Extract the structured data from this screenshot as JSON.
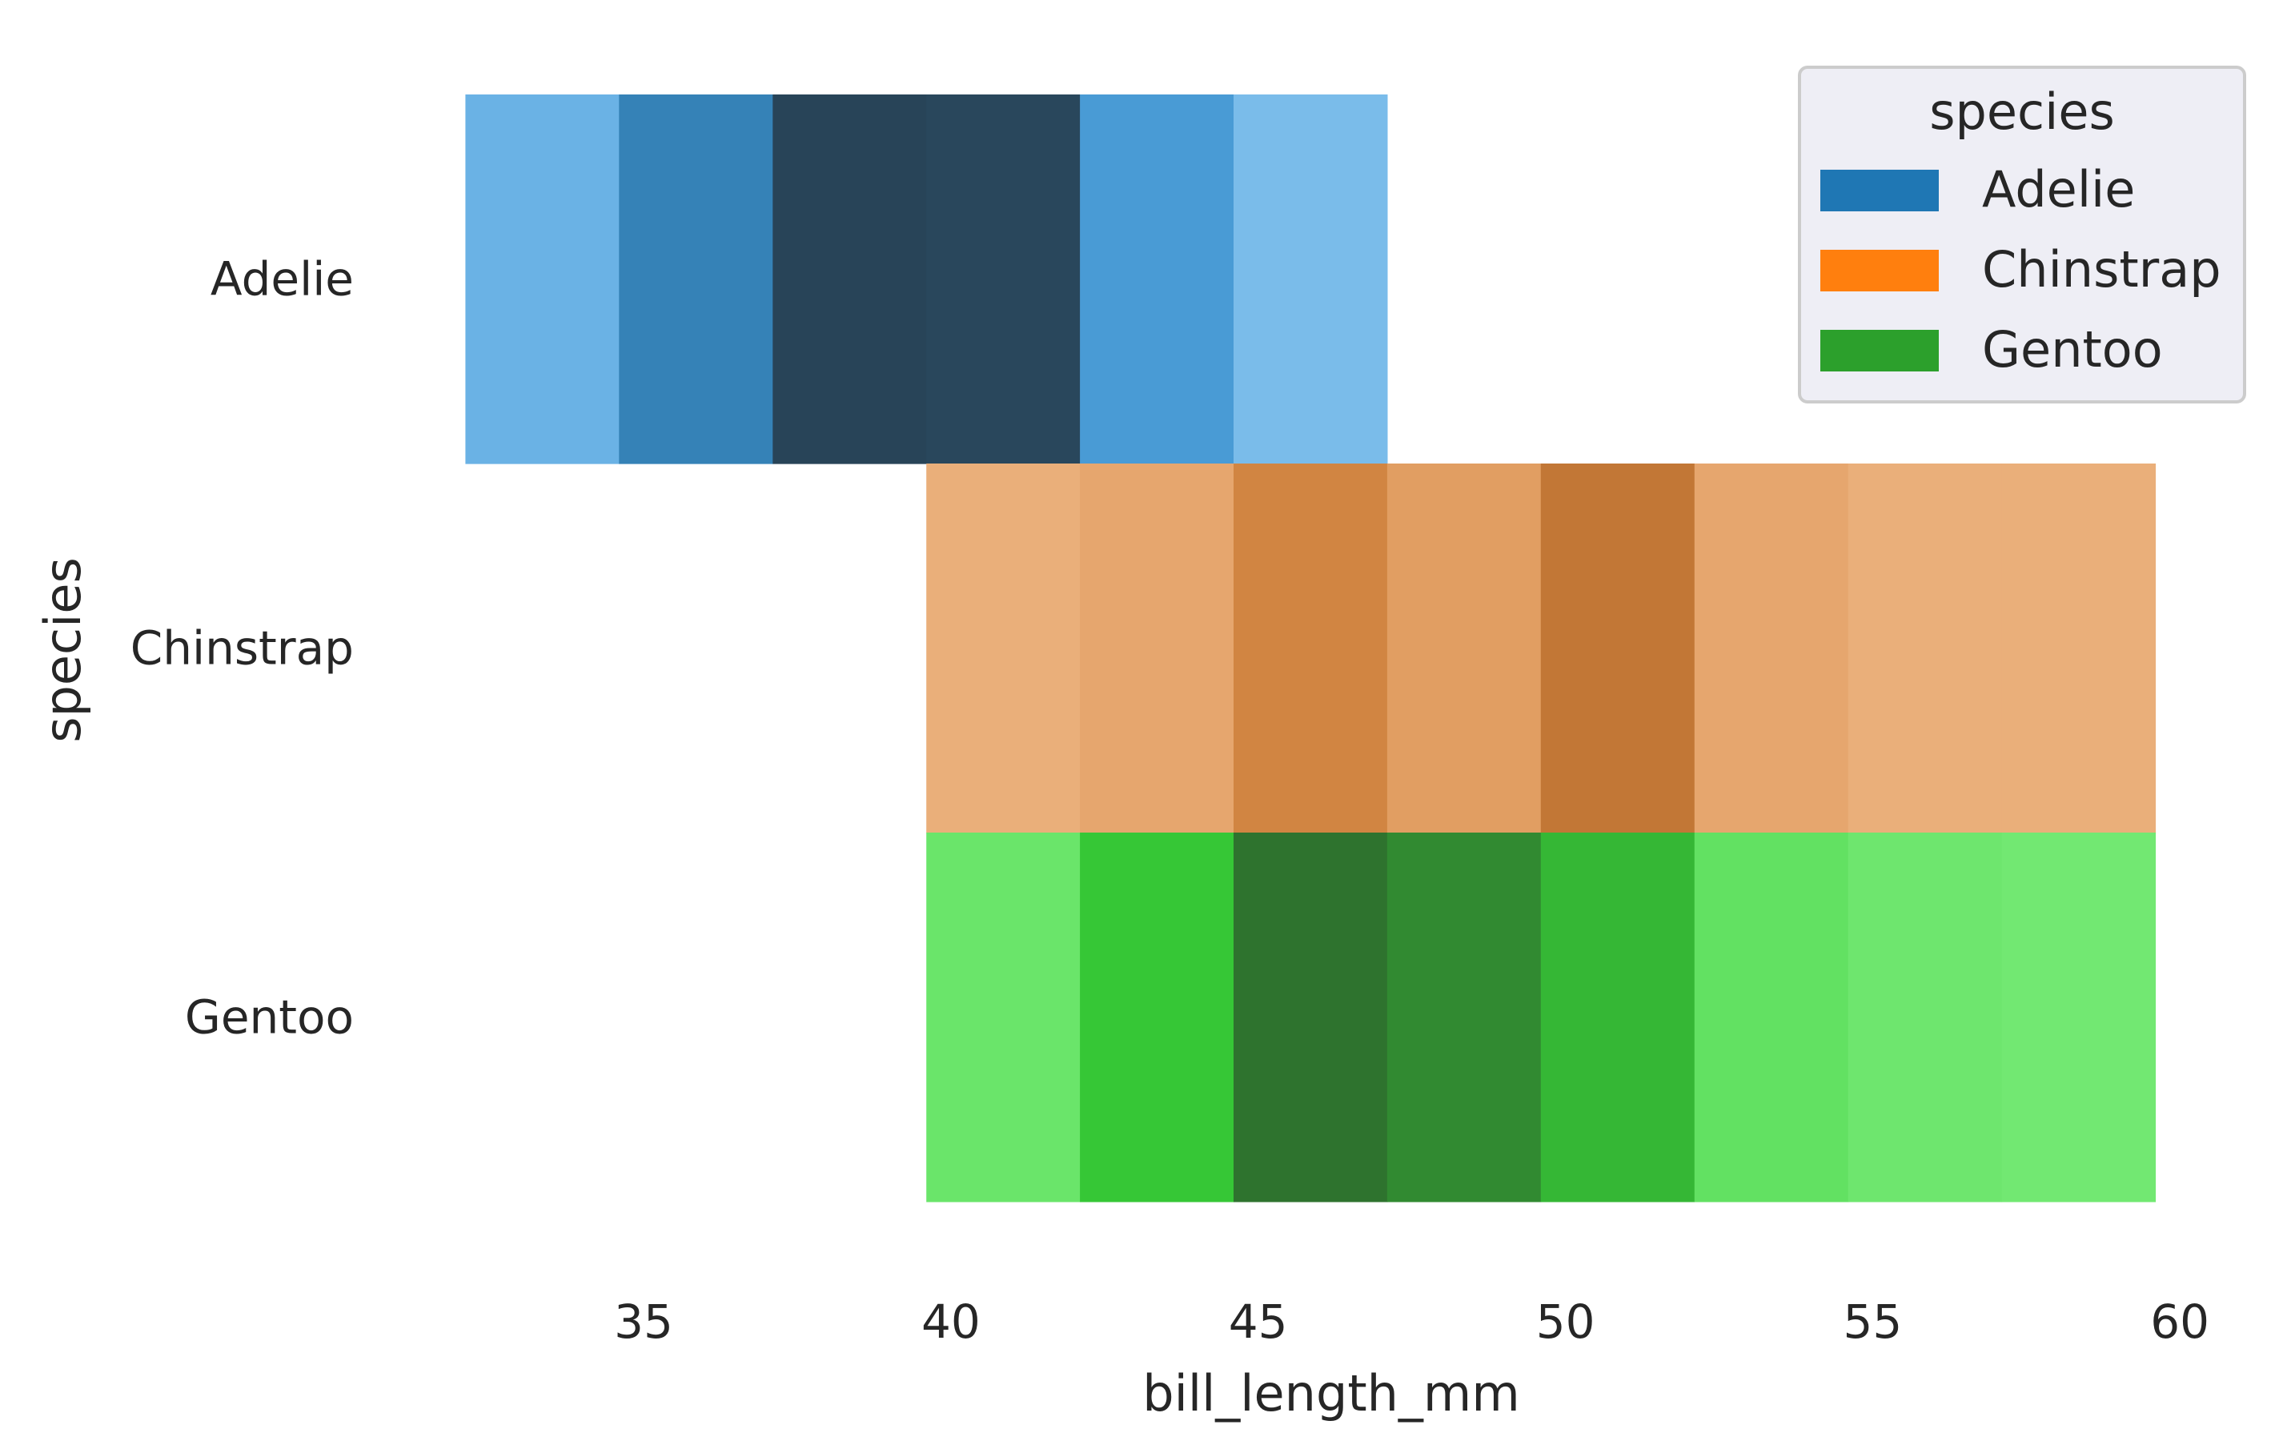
{
  "chart_data": {
    "type": "heatmap",
    "xlabel": "bill_length_mm",
    "ylabel": "species",
    "xlim": [
      31.3,
      61.0
    ],
    "x_ticks": [
      35,
      40,
      45,
      50,
      55,
      60
    ],
    "x_tick_labels": [
      "35",
      "40",
      "45",
      "50",
      "55",
      "60"
    ],
    "y_categories": [
      "Adelie",
      "Chinstrap",
      "Gentoo"
    ],
    "bin_edges": [
      32.1,
      34.6,
      37.1,
      39.6,
      42.1,
      44.6,
      47.1,
      49.6,
      52.1,
      54.6,
      57.1,
      59.6
    ],
    "count_scale": {
      "min": 0,
      "max": 44
    },
    "grid": false,
    "legend": {
      "title": "species",
      "position": "upper-right",
      "entries": [
        {
          "label": "Adelie",
          "color": "#1f77b4"
        },
        {
          "label": "Chinstrap",
          "color": "#ff7f0e"
        },
        {
          "label": "Gentoo",
          "color": "#2ca02c"
        }
      ]
    },
    "series": [
      {
        "name": "Adelie",
        "color": "#1f77b4",
        "bins": [
          {
            "x": [
              32.1,
              34.6
            ],
            "count": 6
          },
          {
            "x": [
              34.6,
              37.1
            ],
            "count": 24
          },
          {
            "x": [
              37.1,
              39.6
            ],
            "count": 44
          },
          {
            "x": [
              39.6,
              42.1
            ],
            "count": 43
          },
          {
            "x": [
              42.1,
              44.6
            ],
            "count": 15
          },
          {
            "x": [
              44.6,
              47.1
            ],
            "count": 2
          }
        ]
      },
      {
        "name": "Chinstrap",
        "color": "#ff7f0e",
        "bins": [
          {
            "x": [
              39.6,
              42.1
            ],
            "count": 2
          },
          {
            "x": [
              42.1,
              44.6
            ],
            "count": 5
          },
          {
            "x": [
              44.6,
              47.1
            ],
            "count": 17
          },
          {
            "x": [
              47.1,
              49.6
            ],
            "count": 8
          },
          {
            "x": [
              49.6,
              52.1
            ],
            "count": 22
          },
          {
            "x": [
              52.1,
              54.6
            ],
            "count": 5
          },
          {
            "x": [
              54.6,
              57.1
            ],
            "count": 2
          },
          {
            "x": [
              57.1,
              59.6
            ],
            "count": 2
          }
        ]
      },
      {
        "name": "Gentoo",
        "color": "#2ca02c",
        "bins": [
          {
            "x": [
              39.6,
              42.1
            ],
            "count": 6
          },
          {
            "x": [
              42.1,
              44.6
            ],
            "count": 21
          },
          {
            "x": [
              44.6,
              47.1
            ],
            "count": 38
          },
          {
            "x": [
              47.1,
              49.6
            ],
            "count": 33
          },
          {
            "x": [
              49.6,
              52.1
            ],
            "count": 24
          },
          {
            "x": [
              52.1,
              54.6
            ],
            "count": 8
          },
          {
            "x": [
              54.6,
              57.1
            ],
            "count": 5
          },
          {
            "x": [
              57.1,
              59.6
            ],
            "count": 4
          }
        ]
      }
    ]
  }
}
